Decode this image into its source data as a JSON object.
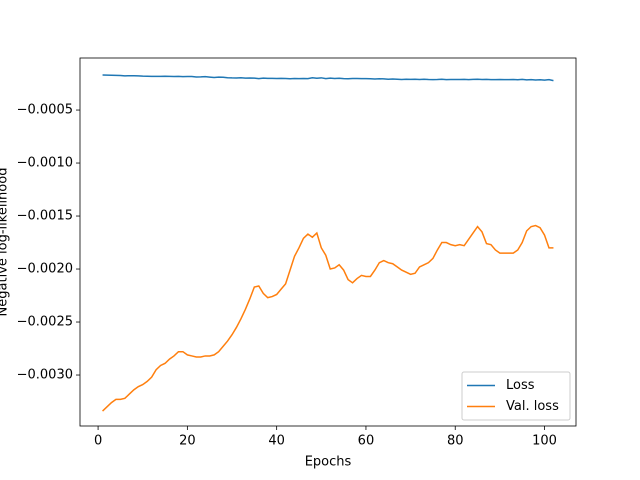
{
  "chart_data": {
    "type": "line",
    "xlabel": "Epochs",
    "ylabel": "Negative log-likelihood",
    "x": [
      1,
      2,
      3,
      4,
      5,
      6,
      7,
      8,
      9,
      10,
      11,
      12,
      13,
      14,
      15,
      16,
      17,
      18,
      19,
      20,
      21,
      22,
      23,
      24,
      25,
      26,
      27,
      28,
      29,
      30,
      31,
      32,
      33,
      34,
      35,
      36,
      37,
      38,
      39,
      40,
      41,
      42,
      43,
      44,
      45,
      46,
      47,
      48,
      49,
      50,
      51,
      52,
      53,
      54,
      55,
      56,
      57,
      58,
      59,
      60,
      61,
      62,
      63,
      64,
      65,
      66,
      67,
      68,
      69,
      70,
      71,
      72,
      73,
      74,
      75,
      76,
      77,
      78,
      79,
      80,
      81,
      82,
      83,
      84,
      85,
      86,
      87,
      88,
      89,
      90,
      91,
      92,
      93,
      94,
      95,
      96,
      97,
      98,
      99,
      100,
      101,
      102
    ],
    "series": [
      {
        "name": "Loss",
        "color": "#1f77b4",
        "values": [
          -0.00017,
          -0.000171,
          -0.000172,
          -0.000173,
          -0.000174,
          -0.000178,
          -0.000176,
          -0.000176,
          -0.000178,
          -0.00018,
          -0.000181,
          -0.000182,
          -0.000182,
          -0.000182,
          -0.000181,
          -0.000182,
          -0.000184,
          -0.000182,
          -0.000185,
          -0.000183,
          -0.000184,
          -0.000188,
          -0.000187,
          -0.000185,
          -0.000189,
          -0.000193,
          -0.00019,
          -0.000191,
          -0.000195,
          -0.000197,
          -0.000198,
          -0.000195,
          -0.000199,
          -0.000198,
          -0.000199,
          -0.000203,
          -0.000199,
          -0.000201,
          -0.000201,
          -0.000202,
          -0.000201,
          -0.000203,
          -0.000205,
          -0.000203,
          -0.000204,
          -0.000203,
          -0.000204,
          -0.000195,
          -0.0002,
          -0.000196,
          -0.000203,
          -0.000199,
          -0.000202,
          -0.0002,
          -0.000204,
          -0.000205,
          -0.000203,
          -0.000202,
          -0.000204,
          -0.000204,
          -0.000205,
          -0.000207,
          -0.000205,
          -0.000206,
          -0.000209,
          -0.000207,
          -0.000209,
          -0.000212,
          -0.00021,
          -0.000211,
          -0.000209,
          -0.000212,
          -0.00021,
          -0.000212,
          -0.000213,
          -0.000212,
          -0.000209,
          -0.000213,
          -0.000212,
          -0.000212,
          -0.000212,
          -0.000211,
          -0.000213,
          -0.000211,
          -0.00021,
          -0.000212,
          -0.000211,
          -0.000213,
          -0.000213,
          -0.000212,
          -0.000213,
          -0.000213,
          -0.000212,
          -0.000214,
          -0.000211,
          -0.000215,
          -0.000213,
          -0.000216,
          -0.000214,
          -0.000218,
          -0.000213,
          -0.000222
        ]
      },
      {
        "name": "Val. loss",
        "color": "#ff7f0e",
        "values": [
          -0.00334,
          -0.0033,
          -0.00326,
          -0.00323,
          -0.00323,
          -0.00322,
          -0.00318,
          -0.00314,
          -0.00311,
          -0.00309,
          -0.00306,
          -0.00302,
          -0.00295,
          -0.00291,
          -0.00289,
          -0.00285,
          -0.00282,
          -0.00278,
          -0.00278,
          -0.00281,
          -0.00282,
          -0.00283,
          -0.00283,
          -0.00282,
          -0.00282,
          -0.00281,
          -0.00278,
          -0.00273,
          -0.00268,
          -0.00262,
          -0.00255,
          -0.00247,
          -0.00238,
          -0.00228,
          -0.00217,
          -0.00216,
          -0.00223,
          -0.00227,
          -0.00226,
          -0.00224,
          -0.00219,
          -0.00214,
          -0.00201,
          -0.00188,
          -0.0018,
          -0.00171,
          -0.00167,
          -0.0017,
          -0.00166,
          -0.0018,
          -0.00187,
          -0.002,
          -0.00199,
          -0.00196,
          -0.00201,
          -0.0021,
          -0.00213,
          -0.00209,
          -0.00206,
          -0.00207,
          -0.00207,
          -0.00201,
          -0.00194,
          -0.00192,
          -0.00194,
          -0.00195,
          -0.00198,
          -0.00201,
          -0.00203,
          -0.00205,
          -0.00204,
          -0.00198,
          -0.00196,
          -0.00194,
          -0.0019,
          -0.00182,
          -0.00175,
          -0.00175,
          -0.00177,
          -0.00178,
          -0.00177,
          -0.00178,
          -0.00172,
          -0.00166,
          -0.0016,
          -0.00165,
          -0.00176,
          -0.00177,
          -0.00182,
          -0.00185,
          -0.00185,
          -0.00185,
          -0.00185,
          -0.00182,
          -0.00175,
          -0.00164,
          -0.0016,
          -0.00159,
          -0.00161,
          -0.00168,
          -0.0018,
          -0.0018
        ]
      }
    ],
    "xlim": [
      -4.05,
      107.05
    ],
    "ylim": [
      -0.003481,
      -9e-06
    ],
    "xticks": [
      0,
      20,
      40,
      60,
      80,
      100
    ],
    "yticks": [
      {
        "value": -0.003,
        "label": "−0.0030"
      },
      {
        "value": -0.0025,
        "label": "−0.0025"
      },
      {
        "value": -0.002,
        "label": "−0.0020"
      },
      {
        "value": -0.0015,
        "label": "−0.0015"
      },
      {
        "value": -0.001,
        "label": "−0.0010"
      },
      {
        "value": -0.0005,
        "label": "−0.0005"
      }
    ],
    "grid": false,
    "legend": "lower right"
  }
}
